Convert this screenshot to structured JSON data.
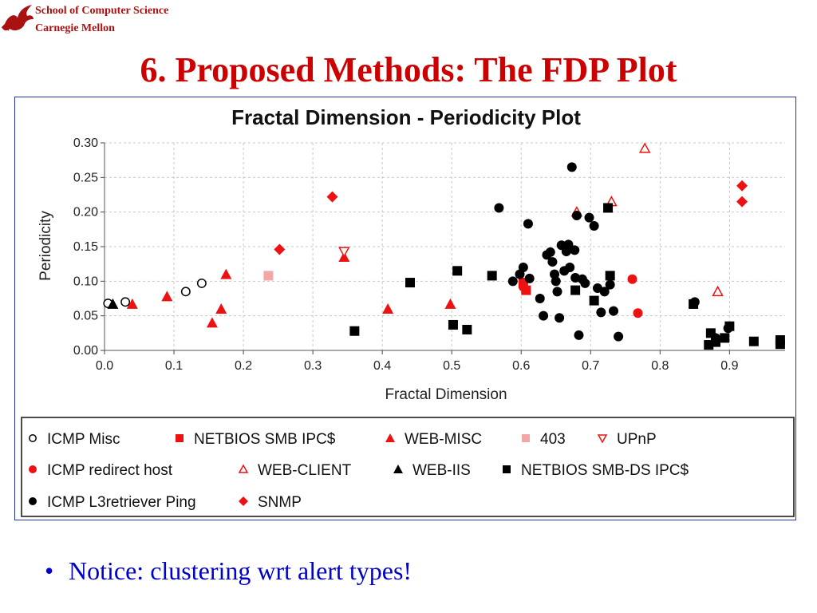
{
  "header": {
    "school_line1": "School of Computer Science",
    "school_line2": "Carnegie Mellon",
    "logo_icon": "dragon-logo-icon"
  },
  "slide": {
    "title": "6. Proposed Methods: The FDP Plot",
    "bullet": "Notice: clustering wrt alert types!"
  },
  "colors": {
    "red": "#ee1111",
    "black": "#000000",
    "pink": "#f4a6a6",
    "title_red": "#cc0000",
    "bullet_blue": "#0000cc"
  },
  "chart_data": {
    "type": "scatter",
    "title": "Fractal Dimension - Periodicity Plot",
    "xlabel": "Fractal Dimension",
    "ylabel": "Periodicity",
    "xlim": [
      0.0,
      0.98
    ],
    "ylim": [
      0.0,
      0.3
    ],
    "xticks": [
      "0.0",
      "0.1",
      "0.2",
      "0.3",
      "0.4",
      "0.5",
      "0.6",
      "0.7",
      "0.8",
      "0.9"
    ],
    "yticks": [
      "0.00",
      "0.05",
      "0.10",
      "0.15",
      "0.20",
      "0.25",
      "0.30"
    ],
    "grid": true,
    "legend_position": "bottom",
    "series": [
      {
        "name": "ICMP Misc",
        "marker": "circle-open",
        "color": "#000000",
        "points": [
          [
            0.005,
            0.068
          ],
          [
            0.03,
            0.07
          ],
          [
            0.117,
            0.085
          ],
          [
            0.14,
            0.097
          ]
        ]
      },
      {
        "name": "NETBIOS SMB IPC$",
        "marker": "square",
        "color": "#ee1111",
        "points": [
          [
            0.603,
            0.098
          ],
          [
            0.607,
            0.087
          ]
        ]
      },
      {
        "name": "WEB-MISC",
        "marker": "triangle",
        "color": "#ee1111",
        "points": [
          [
            0.04,
            0.067
          ],
          [
            0.09,
            0.078
          ],
          [
            0.155,
            0.04
          ],
          [
            0.168,
            0.06
          ],
          [
            0.175,
            0.11
          ],
          [
            0.345,
            0.135
          ],
          [
            0.408,
            0.06
          ],
          [
            0.498,
            0.067
          ]
        ]
      },
      {
        "name": "403",
        "marker": "square",
        "color": "#f4a6a6",
        "points": [
          [
            0.236,
            0.108
          ]
        ]
      },
      {
        "name": "UPnP",
        "marker": "triangle-down-open",
        "color": "#ee1111",
        "points": [
          [
            0.345,
            0.143
          ]
        ]
      },
      {
        "name": "ICMP redirect host",
        "marker": "circle",
        "color": "#ee1111",
        "points": [
          [
            0.76,
            0.103
          ],
          [
            0.768,
            0.054
          ],
          [
            0.603,
            0.092
          ]
        ]
      },
      {
        "name": "WEB-CLIENT",
        "marker": "triangle-open",
        "color": "#ee1111",
        "points": [
          [
            0.778,
            0.292
          ],
          [
            0.883,
            0.085
          ],
          [
            0.68,
            0.2
          ],
          [
            0.73,
            0.215
          ]
        ]
      },
      {
        "name": "WEB-IIS",
        "marker": "triangle",
        "color": "#000000",
        "points": [
          [
            0.012,
            0.067
          ]
        ]
      },
      {
        "name": "NETBIOS SMB-DS IPC$",
        "marker": "square",
        "color": "#000000",
        "points": [
          [
            0.36,
            0.028
          ],
          [
            0.44,
            0.098
          ],
          [
            0.502,
            0.037
          ],
          [
            0.508,
            0.115
          ],
          [
            0.522,
            0.03
          ],
          [
            0.558,
            0.108
          ],
          [
            0.678,
            0.087
          ],
          [
            0.705,
            0.072
          ],
          [
            0.725,
            0.206
          ],
          [
            0.728,
            0.108
          ],
          [
            0.848,
            0.067
          ],
          [
            0.87,
            0.008
          ],
          [
            0.873,
            0.025
          ],
          [
            0.88,
            0.012
          ],
          [
            0.893,
            0.018
          ],
          [
            0.9,
            0.035
          ],
          [
            0.935,
            0.013
          ],
          [
            0.973,
            0.015
          ],
          [
            0.973,
            0.009
          ]
        ]
      },
      {
        "name": "ICMP L3retriever Ping",
        "marker": "circle",
        "color": "#000000",
        "points": [
          [
            0.568,
            0.206
          ],
          [
            0.588,
            0.1
          ],
          [
            0.598,
            0.11
          ],
          [
            0.603,
            0.12
          ],
          [
            0.61,
            0.183
          ],
          [
            0.612,
            0.104
          ],
          [
            0.627,
            0.075
          ],
          [
            0.632,
            0.05
          ],
          [
            0.637,
            0.138
          ],
          [
            0.642,
            0.142
          ],
          [
            0.645,
            0.128
          ],
          [
            0.648,
            0.11
          ],
          [
            0.65,
            0.1
          ],
          [
            0.652,
            0.085
          ],
          [
            0.655,
            0.047
          ],
          [
            0.658,
            0.152
          ],
          [
            0.662,
            0.115
          ],
          [
            0.665,
            0.143
          ],
          [
            0.668,
            0.153
          ],
          [
            0.67,
            0.12
          ],
          [
            0.673,
            0.265
          ],
          [
            0.677,
            0.145
          ],
          [
            0.678,
            0.105
          ],
          [
            0.68,
            0.195
          ],
          [
            0.683,
            0.022
          ],
          [
            0.688,
            0.103
          ],
          [
            0.692,
            0.097
          ],
          [
            0.698,
            0.192
          ],
          [
            0.705,
            0.18
          ],
          [
            0.71,
            0.09
          ],
          [
            0.715,
            0.055
          ],
          [
            0.72,
            0.085
          ],
          [
            0.728,
            0.095
          ],
          [
            0.733,
            0.057
          ],
          [
            0.74,
            0.02
          ],
          [
            0.85,
            0.07
          ],
          [
            0.898,
            0.032
          ],
          [
            0.88,
            0.018
          ]
        ]
      },
      {
        "name": "SNMP",
        "marker": "diamond",
        "color": "#ee1111",
        "points": [
          [
            0.252,
            0.146
          ],
          [
            0.328,
            0.222
          ],
          [
            0.918,
            0.238
          ],
          [
            0.918,
            0.215
          ]
        ]
      }
    ]
  }
}
